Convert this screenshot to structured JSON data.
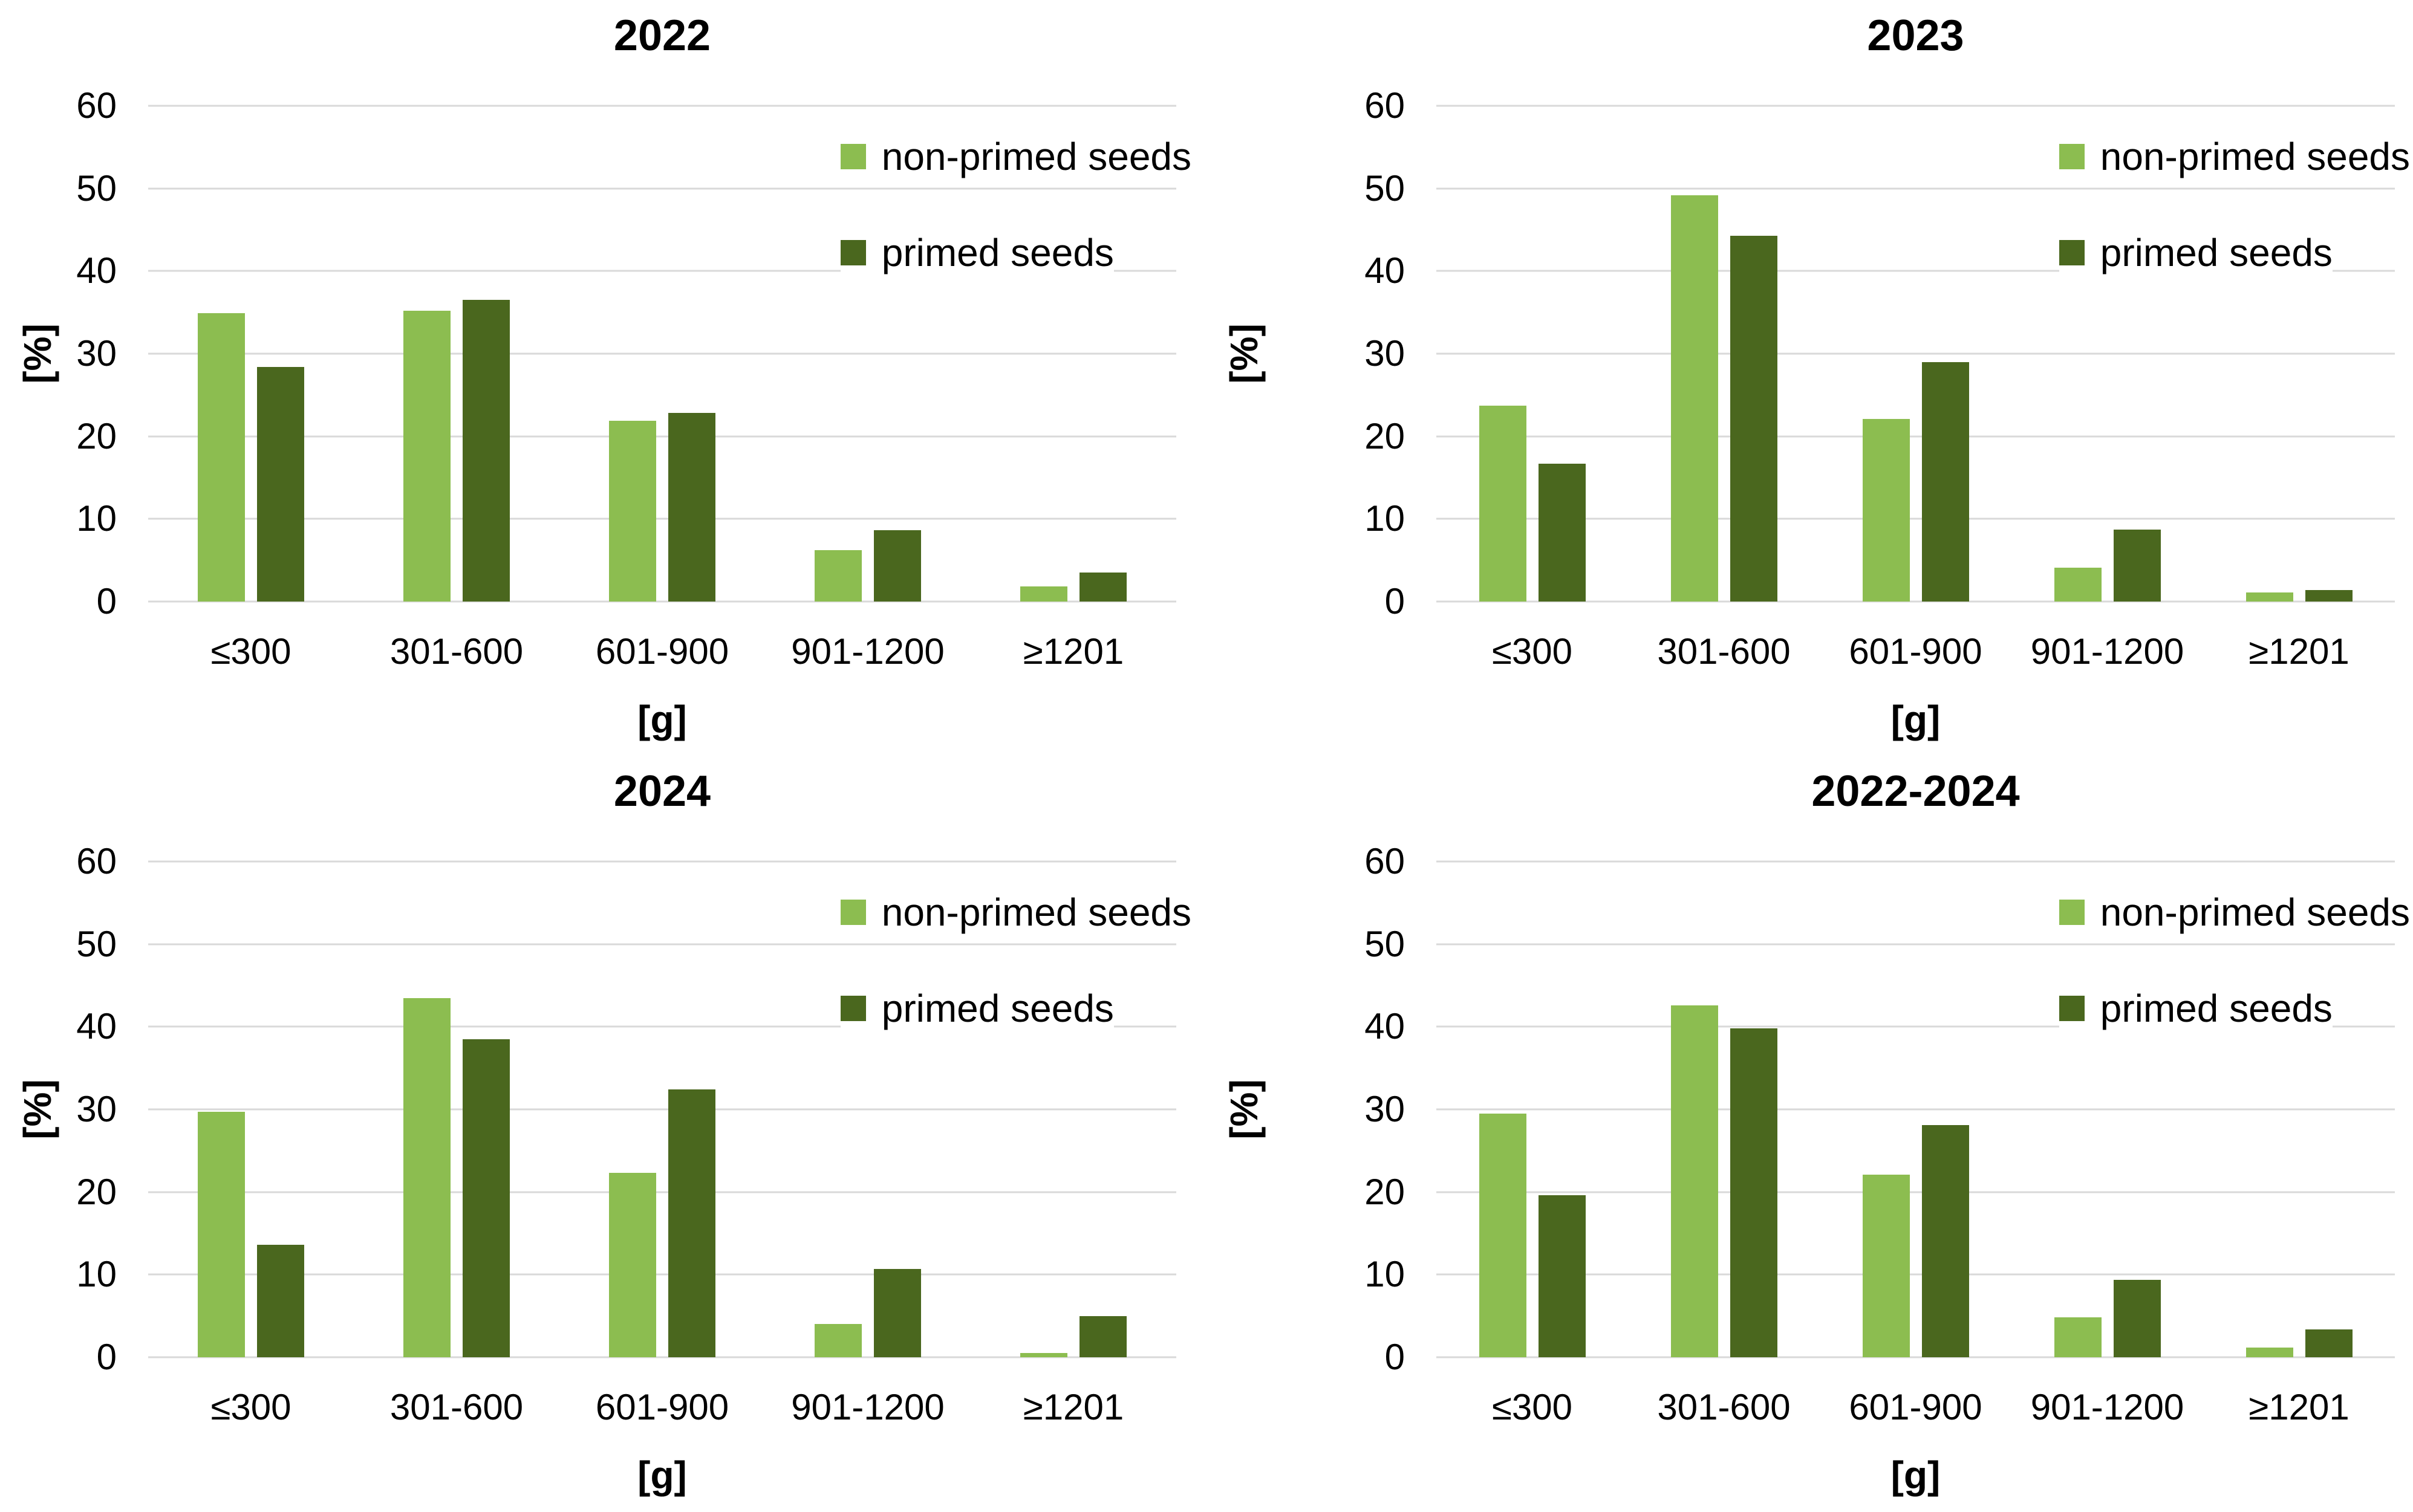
{
  "page": {
    "background": "#ffffff"
  },
  "colors": {
    "non_primed": "#8CBD50",
    "primed": "#4A671E",
    "gridline": "#D9D9D9",
    "text": "#000000"
  },
  "legend": [
    "non-primed seeds",
    "primed seeds"
  ],
  "axes": {
    "ylabel": "[%]",
    "xlabel": "[g]",
    "yticks": [
      0,
      10,
      20,
      30,
      40,
      50,
      60
    ],
    "ylim": [
      0,
      60
    ],
    "grid": true
  },
  "chart_data": [
    {
      "type": "bar",
      "title": "2022",
      "categories": [
        "≤300",
        "301-600",
        "601-900",
        "901-1200",
        "≥1201"
      ],
      "series": [
        {
          "name": "non-primed seeds",
          "values": [
            34.9,
            35.2,
            21.9,
            6.2,
            1.8
          ]
        },
        {
          "name": "primed seeds",
          "values": [
            28.4,
            36.5,
            22.8,
            8.6,
            3.5
          ]
        }
      ],
      "xlabel": "[g]",
      "ylabel": "[%]",
      "ylim": [
        0,
        60
      ],
      "grid": true,
      "legend_position": "top-right"
    },
    {
      "type": "bar",
      "title": "2023",
      "categories": [
        "≤300",
        "301-600",
        "601-900",
        "901-1200",
        "≥1201"
      ],
      "series": [
        {
          "name": "non-primed seeds",
          "values": [
            23.7,
            49.2,
            22.1,
            4.1,
            1.1
          ]
        },
        {
          "name": "primed seeds",
          "values": [
            16.7,
            44.3,
            29.0,
            8.7,
            1.4
          ]
        }
      ],
      "xlabel": "[g]",
      "ylabel": "[%]",
      "ylim": [
        0,
        60
      ],
      "grid": true,
      "legend_position": "top-right"
    },
    {
      "type": "bar",
      "title": "2024",
      "categories": [
        "≤300",
        "301-600",
        "601-900",
        "901-1200",
        "≥1201"
      ],
      "series": [
        {
          "name": "non-primed seeds",
          "values": [
            29.7,
            43.5,
            22.3,
            4.0,
            0.5
          ]
        },
        {
          "name": "primed seeds",
          "values": [
            13.6,
            38.5,
            32.4,
            10.7,
            5.0
          ]
        }
      ],
      "xlabel": "[g]",
      "ylabel": "[%]",
      "ylim": [
        0,
        60
      ],
      "grid": true,
      "legend_position": "top-right"
    },
    {
      "type": "bar",
      "title": "2022-2024",
      "categories": [
        "≤300",
        "301-600",
        "601-900",
        "901-1200",
        "≥1201"
      ],
      "series": [
        {
          "name": "non-primed seeds",
          "values": [
            29.5,
            42.6,
            22.1,
            4.8,
            1.2
          ]
        },
        {
          "name": "primed seeds",
          "values": [
            19.6,
            39.8,
            28.1,
            9.4,
            3.4
          ]
        }
      ],
      "xlabel": "[g]",
      "ylabel": "[%]",
      "ylim": [
        0,
        60
      ],
      "grid": true,
      "legend_position": "top-right"
    }
  ]
}
